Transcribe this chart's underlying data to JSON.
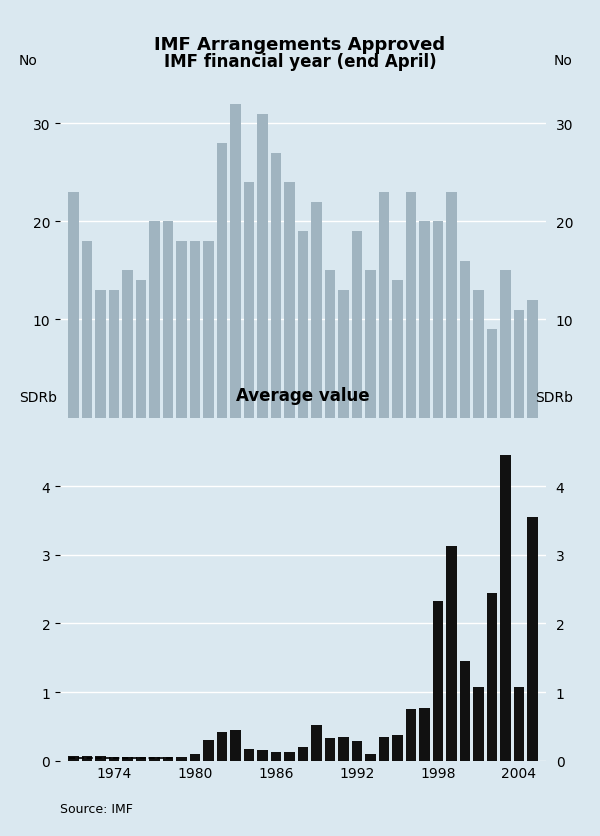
{
  "title": "IMF Arrangements Approved",
  "subtitle": "IMF financial year (end April)",
  "source": "Source: IMF",
  "background_color": "#dae8f0",
  "top_chart": {
    "ylabel_left": "No",
    "ylabel_right": "No",
    "ylim": [
      0,
      35
    ],
    "yticks": [
      10,
      20,
      30
    ],
    "bar_color": "#a0b4c0",
    "years": [
      1971,
      1972,
      1973,
      1974,
      1975,
      1976,
      1977,
      1978,
      1979,
      1980,
      1981,
      1982,
      1983,
      1984,
      1985,
      1986,
      1987,
      1988,
      1989,
      1990,
      1991,
      1992,
      1993,
      1994,
      1995,
      1996,
      1997,
      1998,
      1999,
      2000,
      2001,
      2002,
      2003,
      2004,
      2005
    ],
    "values": [
      23,
      18,
      13,
      13,
      15,
      14,
      20,
      20,
      18,
      18,
      18,
      28,
      32,
      24,
      31,
      27,
      24,
      19,
      22,
      15,
      13,
      19,
      15,
      23,
      14,
      23,
      20,
      20,
      23,
      16,
      13,
      9,
      15,
      11,
      12
    ]
  },
  "bottom_chart": {
    "title": "Average value",
    "ylabel_left": "SDRb",
    "ylabel_right": "SDRb",
    "ylim": [
      0,
      5
    ],
    "yticks": [
      0,
      1,
      2,
      3,
      4
    ],
    "bar_color": "#111111",
    "years": [
      1971,
      1972,
      1973,
      1974,
      1975,
      1976,
      1977,
      1978,
      1979,
      1980,
      1981,
      1982,
      1983,
      1984,
      1985,
      1986,
      1987,
      1988,
      1989,
      1990,
      1991,
      1992,
      1993,
      1994,
      1995,
      1996,
      1997,
      1998,
      1999,
      2000,
      2001,
      2002,
      2003,
      2004,
      2005
    ],
    "values": [
      0.07,
      0.07,
      0.07,
      0.05,
      0.05,
      0.05,
      0.05,
      0.05,
      0.05,
      0.1,
      0.3,
      0.42,
      0.45,
      0.17,
      0.15,
      0.13,
      0.13,
      0.2,
      0.52,
      0.33,
      0.35,
      0.28,
      0.1,
      0.35,
      0.37,
      0.75,
      0.77,
      2.33,
      3.13,
      1.45,
      1.08,
      2.45,
      4.45,
      1.07,
      3.55
    ],
    "dashed_x_start": 1971,
    "dashed_x_end": 1978
  },
  "xtick_years": [
    1974,
    1980,
    1986,
    1992,
    1998,
    2004
  ],
  "xlim_start": 1970,
  "xlim_end": 2006,
  "title_fontsize": 13,
  "axis_label_fontsize": 10,
  "tick_fontsize": 10,
  "source_fontsize": 9
}
